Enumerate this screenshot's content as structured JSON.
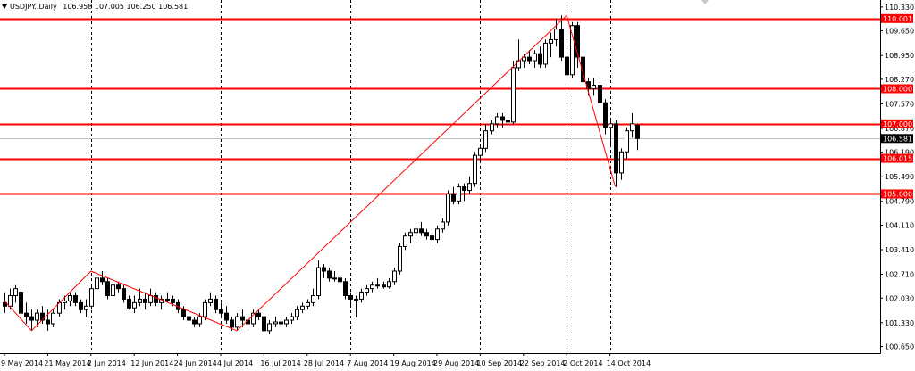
{
  "header": {
    "symbol": "USDJPY..Daily",
    "ohlc": "106.958 107.005 106.250 106.581"
  },
  "chart_data": {
    "type": "candlestick",
    "symbol": "USDJPY..",
    "timeframe": "Daily",
    "ohlc_last": {
      "open": 106.958,
      "high": 107.005,
      "low": 106.25,
      "close": 106.581
    },
    "ylim": [
      100.46,
      110.53
    ],
    "y_ticks": [
      "110.330",
      "109.650",
      "108.950",
      "108.270",
      "107.570",
      "106.870",
      "106.190",
      "105.490",
      "104.790",
      "104.110",
      "103.410",
      "102.710",
      "102.030",
      "101.330",
      "100.650"
    ],
    "x_ticks": [
      "9 May 2014",
      "21 May 2014",
      "2 Jun 2014",
      "12 Jun 2014",
      "24 Jun 2014",
      "4 Jul 2014",
      "16 Jul 2014",
      "28 Jul 2014",
      "7 Aug 2014",
      "19 Aug 2014",
      "29 Aug 2014",
      "10 Sep 2014",
      "22 Sep 2014",
      "2 Oct 2014",
      "14 Oct 2014"
    ],
    "vertical_grid_dates": [
      "2 Jun 2014",
      "4 Jul 2014",
      "7 Aug 2014",
      "10 Sep 2014",
      "2 Oct 2014",
      "14 Oct 2014"
    ],
    "horizontal_levels": [
      {
        "label": "110.001",
        "value": 110.001
      },
      {
        "label": "108.000",
        "value": 108.0
      },
      {
        "label": "107.000",
        "value": 107.0
      },
      {
        "label": "106.015",
        "value": 106.015
      },
      {
        "label": "105.000",
        "value": 105.0
      }
    ],
    "current_price": {
      "label": "106.581",
      "value": 106.581
    },
    "trend_lines": [
      [
        [
          "9 May 2014",
          101.95
        ],
        [
          "16 May 2014",
          101.1
        ],
        [
          "2 Jun 2014",
          102.8
        ],
        [
          "9 Jul 2014",
          101.1
        ],
        [
          "2 Oct 2014",
          110.09
        ],
        [
          "15 Oct 2014",
          105.2
        ]
      ]
    ],
    "candles": [
      [
        "9 May 2014",
        101.9,
        102.2,
        101.6,
        101.8
      ],
      [
        "12 May 2014",
        101.8,
        102.3,
        101.7,
        102.1
      ],
      [
        "13 May 2014",
        102.1,
        102.4,
        101.9,
        102.3
      ],
      [
        "14 May 2014",
        102.2,
        102.3,
        101.5,
        101.6
      ],
      [
        "15 May 2014",
        101.6,
        101.9,
        101.3,
        101.5
      ],
      [
        "16 May 2014",
        101.5,
        101.7,
        101.1,
        101.4
      ],
      [
        "19 May 2014",
        101.4,
        101.7,
        101.2,
        101.6
      ],
      [
        "20 May 2014",
        101.6,
        101.8,
        101.3,
        101.4
      ],
      [
        "21 May 2014",
        101.4,
        101.7,
        101.1,
        101.3
      ],
      [
        "22 May 2014",
        101.3,
        101.7,
        101.2,
        101.6
      ],
      [
        "23 May 2014",
        101.6,
        102.0,
        101.5,
        101.9
      ],
      [
        "26 May 2014",
        101.9,
        102.1,
        101.7,
        101.95
      ],
      [
        "27 May 2014",
        101.95,
        102.2,
        101.8,
        102.1
      ],
      [
        "28 May 2014",
        102.1,
        102.2,
        101.8,
        101.9
      ],
      [
        "29 May 2014",
        101.9,
        102.0,
        101.6,
        101.7
      ],
      [
        "30 May 2014",
        101.7,
        102.0,
        101.5,
        101.8
      ],
      [
        "2 Jun 2014",
        101.8,
        102.4,
        101.7,
        102.3
      ],
      [
        "3 Jun 2014",
        102.3,
        102.7,
        102.2,
        102.6
      ],
      [
        "4 Jun 2014",
        102.6,
        102.8,
        102.4,
        102.5
      ],
      [
        "5 Jun 2014",
        102.5,
        102.6,
        102.0,
        102.1
      ],
      [
        "6 Jun 2014",
        102.1,
        102.5,
        102.0,
        102.4
      ],
      [
        "9 Jun 2014",
        102.4,
        102.5,
        102.2,
        102.3
      ],
      [
        "10 Jun 2014",
        102.3,
        102.4,
        101.9,
        102.0
      ],
      [
        "11 Jun 2014",
        102.0,
        102.1,
        101.7,
        101.75
      ],
      [
        "12 Jun 2014",
        101.75,
        102.1,
        101.6,
        101.9
      ],
      [
        "13 Jun 2014",
        101.9,
        102.3,
        101.8,
        102.0
      ],
      [
        "16 Jun 2014",
        102.0,
        102.2,
        101.7,
        101.9
      ],
      [
        "17 Jun 2014",
        101.9,
        102.3,
        101.8,
        102.1
      ],
      [
        "18 Jun 2014",
        102.1,
        102.2,
        101.8,
        101.9
      ],
      [
        "19 Jun 2014",
        101.9,
        102.1,
        101.7,
        102.0
      ],
      [
        "20 Jun 2014",
        102.0,
        102.2,
        101.9,
        102.0
      ],
      [
        "23 Jun 2014",
        102.0,
        102.1,
        101.8,
        101.9
      ],
      [
        "24 Jun 2014",
        101.9,
        102.0,
        101.6,
        101.7
      ],
      [
        "25 Jun 2014",
        101.7,
        101.8,
        101.4,
        101.5
      ],
      [
        "26 Jun 2014",
        101.5,
        101.7,
        101.3,
        101.4
      ],
      [
        "27 Jun 2014",
        101.4,
        101.5,
        101.2,
        101.3
      ],
      [
        "30 Jun 2014",
        101.3,
        101.6,
        101.2,
        101.5
      ],
      [
        "1 Jul 2014",
        101.5,
        102.0,
        101.4,
        101.9
      ],
      [
        "2 Jul 2014",
        101.9,
        102.2,
        101.8,
        102.0
      ],
      [
        "3 Jul 2014",
        102.0,
        102.1,
        101.6,
        101.7
      ],
      [
        "4 Jul 2014",
        101.7,
        101.9,
        101.5,
        101.6
      ],
      [
        "7 Jul 2014",
        101.6,
        101.8,
        101.3,
        101.4
      ],
      [
        "8 Jul 2014",
        101.4,
        101.5,
        101.1,
        101.2
      ],
      [
        "9 Jul 2014",
        101.2,
        101.6,
        101.1,
        101.5
      ],
      [
        "10 Jul 2014",
        101.5,
        101.7,
        101.2,
        101.4
      ],
      [
        "11 Jul 2014",
        101.4,
        101.5,
        101.1,
        101.3
      ],
      [
        "14 Jul 2014",
        101.3,
        101.7,
        101.2,
        101.6
      ],
      [
        "15 Jul 2014",
        101.6,
        101.7,
        101.4,
        101.5
      ],
      [
        "16 Jul 2014",
        101.5,
        101.6,
        101.0,
        101.1
      ],
      [
        "17 Jul 2014",
        101.1,
        101.4,
        101.0,
        101.3
      ],
      [
        "18 Jul 2014",
        101.3,
        101.5,
        101.2,
        101.35
      ],
      [
        "21 Jul 2014",
        101.35,
        101.5,
        101.2,
        101.3
      ],
      [
        "22 Jul 2014",
        101.3,
        101.5,
        101.2,
        101.4
      ],
      [
        "23 Jul 2014",
        101.4,
        101.6,
        101.3,
        101.5
      ],
      [
        "24 Jul 2014",
        101.5,
        101.8,
        101.4,
        101.7
      ],
      [
        "25 Jul 2014",
        101.7,
        101.9,
        101.6,
        101.8
      ],
      [
        "28 Jul 2014",
        101.8,
        102.0,
        101.7,
        101.9
      ],
      [
        "29 Jul 2014",
        101.9,
        102.3,
        101.8,
        102.1
      ],
      [
        "30 Jul 2014",
        102.1,
        103.1,
        102.0,
        102.9
      ],
      [
        "31 Jul 2014",
        102.9,
        103.0,
        102.6,
        102.8
      ],
      [
        "1 Aug 2014",
        102.8,
        102.9,
        102.5,
        102.6
      ],
      [
        "4 Aug 2014",
        102.6,
        102.8,
        102.5,
        102.6
      ],
      [
        "5 Aug 2014",
        102.6,
        102.8,
        102.4,
        102.5
      ],
      [
        "6 Aug 2014",
        102.5,
        102.6,
        102.0,
        102.1
      ],
      [
        "7 Aug 2014",
        102.1,
        102.2,
        101.8,
        102.0
      ],
      [
        "8 Aug 2014",
        102.0,
        102.1,
        101.5,
        102.0
      ],
      [
        "11 Aug 2014",
        102.0,
        102.3,
        101.9,
        102.2
      ],
      [
        "12 Aug 2014",
        102.2,
        102.4,
        102.1,
        102.3
      ],
      [
        "13 Aug 2014",
        102.3,
        102.5,
        102.2,
        102.4
      ],
      [
        "14 Aug 2014",
        102.4,
        102.6,
        102.3,
        102.4
      ],
      [
        "15 Aug 2014",
        102.4,
        102.5,
        102.3,
        102.35
      ],
      [
        "18 Aug 2014",
        102.35,
        102.6,
        102.3,
        102.5
      ],
      [
        "19 Aug 2014",
        102.5,
        102.9,
        102.4,
        102.8
      ],
      [
        "20 Aug 2014",
        102.8,
        103.6,
        102.7,
        103.5
      ],
      [
        "21 Aug 2014",
        103.5,
        103.9,
        103.4,
        103.8
      ],
      [
        "22 Aug 2014",
        103.8,
        104.0,
        103.6,
        103.9
      ],
      [
        "25 Aug 2014",
        103.9,
        104.1,
        103.8,
        104.0
      ],
      [
        "26 Aug 2014",
        104.0,
        104.2,
        103.8,
        103.9
      ],
      [
        "27 Aug 2014",
        103.9,
        104.0,
        103.7,
        103.8
      ],
      [
        "28 Aug 2014",
        103.8,
        103.9,
        103.5,
        103.7
      ],
      [
        "29 Aug 2014",
        103.7,
        104.1,
        103.6,
        104.0
      ],
      [
        "1 Sep 2014",
        104.0,
        104.3,
        103.9,
        104.2
      ],
      [
        "2 Sep 2014",
        104.2,
        105.1,
        104.1,
        105.0
      ],
      [
        "3 Sep 2014",
        105.0,
        105.2,
        104.7,
        104.8
      ],
      [
        "4 Sep 2014",
        104.8,
        105.3,
        104.7,
        105.2
      ],
      [
        "5 Sep 2014",
        105.2,
        105.3,
        104.8,
        105.1
      ],
      [
        "8 Sep 2014",
        105.1,
        105.5,
        105.0,
        105.3
      ],
      [
        "9 Sep 2014",
        105.3,
        106.2,
        105.2,
        106.1
      ],
      [
        "10 Sep 2014",
        106.1,
        106.4,
        105.9,
        106.3
      ],
      [
        "11 Sep 2014",
        106.3,
        107.0,
        106.2,
        106.8
      ],
      [
        "12 Sep 2014",
        106.8,
        107.1,
        106.7,
        107.0
      ],
      [
        "15 Sep 2014",
        107.0,
        107.3,
        106.9,
        107.2
      ],
      [
        "16 Sep 2014",
        107.2,
        107.3,
        106.9,
        107.1
      ],
      [
        "17 Sep 2014",
        107.1,
        107.2,
        106.9,
        107.05
      ],
      [
        "18 Sep 2014",
        107.05,
        108.8,
        107.0,
        108.6
      ],
      [
        "19 Sep 2014",
        108.6,
        109.4,
        108.5,
        108.8
      ],
      [
        "22 Sep 2014",
        108.8,
        109.0,
        108.6,
        108.9
      ],
      [
        "23 Sep 2014",
        108.9,
        109.1,
        108.7,
        108.8
      ],
      [
        "24 Sep 2014",
        108.8,
        109.1,
        108.6,
        109.0
      ],
      [
        "25 Sep 2014",
        109.0,
        109.2,
        108.6,
        108.7
      ],
      [
        "26 Sep 2014",
        108.7,
        109.4,
        108.6,
        109.3
      ],
      [
        "29 Sep 2014",
        109.3,
        109.6,
        108.9,
        109.4
      ],
      [
        "30 Sep 2014",
        109.4,
        110.0,
        109.2,
        109.7
      ],
      [
        "1 Oct 2014",
        109.7,
        110.09,
        108.8,
        108.9
      ],
      [
        "2 Oct 2014",
        108.9,
        109.0,
        108.1,
        108.4
      ],
      [
        "3 Oct 2014",
        108.4,
        109.9,
        108.3,
        109.8
      ],
      [
        "6 Oct 2014",
        109.8,
        109.9,
        108.6,
        108.9
      ],
      [
        "7 Oct 2014",
        108.9,
        109.0,
        108.0,
        108.2
      ],
      [
        "8 Oct 2014",
        108.2,
        108.3,
        107.8,
        108.0
      ],
      [
        "9 Oct 2014",
        108.0,
        108.3,
        107.8,
        108.1
      ],
      [
        "10 Oct 2014",
        108.1,
        108.2,
        107.5,
        107.6
      ],
      [
        "13 Oct 2014",
        107.6,
        107.7,
        106.7,
        106.9
      ],
      [
        "14 Oct 2014",
        106.9,
        107.1,
        106.4,
        107.0
      ],
      [
        "15 Oct 2014",
        107.0,
        107.1,
        105.2,
        105.6
      ],
      [
        "16 Oct 2014",
        105.6,
        106.3,
        105.4,
        106.2
      ],
      [
        "17 Oct 2014",
        106.2,
        106.9,
        106.0,
        106.8
      ],
      [
        "20 Oct 2014",
        106.8,
        107.3,
        106.6,
        107.0
      ],
      [
        "21 Oct 2014",
        106.958,
        107.005,
        106.25,
        106.581
      ]
    ]
  },
  "colors": {
    "background": "#ffffff",
    "axis": "#000000",
    "grid": "#000000",
    "level_line": "#ff0000",
    "level_label_bg": "#ff0000",
    "level_label_text": "#ffffff",
    "trend_line": "#ff0000",
    "bull_body": "#ffffff",
    "bear_body": "#000000",
    "current_price_line": "#c0c0c0",
    "current_price_label_bg": "#000000",
    "current_price_label_text": "#ffffff"
  }
}
